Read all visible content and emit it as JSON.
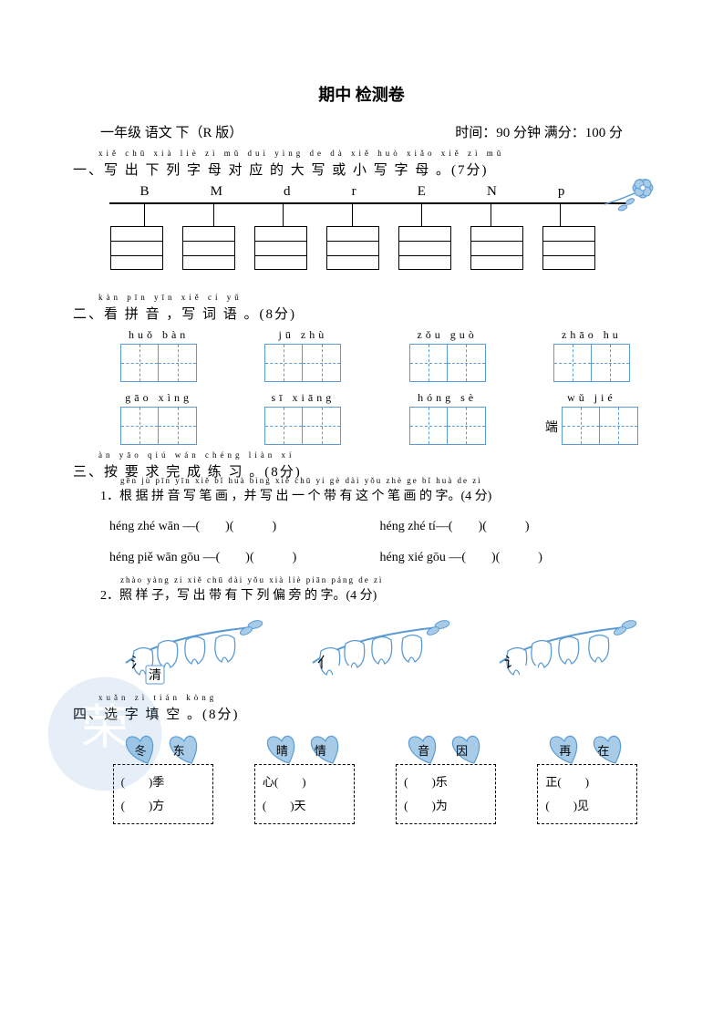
{
  "title": "期中 检测卷",
  "subheader": {
    "left": "一年级 语文 下（R 版）",
    "right": "时间：90 分钟 满分：100 分"
  },
  "q1": {
    "pinyin": "xiě chū xià liè zì mǔ duì yìng de dà xiě huò xiǎo xiě zì mǔ",
    "heading": "一、写 出 下 列 字 母 对 应 的 大 写 或 小 写 字 母 。(7分)",
    "letters": [
      "B",
      "M",
      "d",
      "r",
      "E",
      "N",
      "p"
    ]
  },
  "q2": {
    "pinyin": "kàn pīn yīn   xiě cí yǔ",
    "heading": "二、看 拼 音 ，写 词 语 。(8分)",
    "items": [
      {
        "pinyin": "huǒ  bàn",
        "prefix": ""
      },
      {
        "pinyin": "jū   zhù",
        "prefix": ""
      },
      {
        "pinyin": "zǒu  guò",
        "prefix": ""
      },
      {
        "pinyin": "zhāo  hu",
        "prefix": ""
      },
      {
        "pinyin": "gāo  xìng",
        "prefix": ""
      },
      {
        "pinyin": "sī  xiāng",
        "prefix": ""
      },
      {
        "pinyin": "hóng  sè",
        "prefix": ""
      },
      {
        "pinyin": "wǔ   jié",
        "prefix": "端"
      }
    ]
  },
  "q3": {
    "pinyin": "àn yāo qiú wán chéng liàn xí",
    "heading": "三、按 要 求 完  成  练 习 。(8分)",
    "sub1_pinyin": "gēn jù pīn yīn xiě bǐ huà   bìng xiě chū yí gè dài yǒu zhè ge bǐ huà de zì",
    "sub1": "1．根 据 拼 音 写 笔 画 ，并 写 出 一 个 带 有 这 个 笔 画 的 字。(4 分)",
    "lines": [
      {
        "l": "héng zhé wān —(　　)(　　　)",
        "r": "héng zhé tí—(　　)(　　　)"
      },
      {
        "l": "héng piě wān gōu —(　　)(　　　)",
        "r": "héng xié gōu —(　　)(　　　)"
      }
    ],
    "sub2_pinyin": "zhào yàng zi   xiě chū dài yǒu xià liè piān páng de zì",
    "sub2": "2．照 样 子，写 出 带 有 下 列 偏 旁 的 字。(4 分)",
    "radicals": [
      "氵",
      "亻",
      "讠"
    ],
    "example_char": "清"
  },
  "q4": {
    "pinyin": "xuǎn zì tián kòng",
    "heading": "四、选 字 填 空 。(8分)",
    "groups": [
      {
        "chars": [
          "冬",
          "东"
        ],
        "lines": [
          "(　　)季",
          "(　　)方"
        ]
      },
      {
        "chars": [
          "晴",
          "情"
        ],
        "lines": [
          "心(　　)",
          "(　　)天"
        ]
      },
      {
        "chars": [
          "音",
          "因"
        ],
        "lines": [
          "(　　)乐",
          "(　　)为"
        ]
      },
      {
        "chars": [
          "再",
          "在"
        ],
        "lines": [
          "正(　　)",
          "(　　)见"
        ]
      }
    ]
  },
  "colors": {
    "accent": "#a8cce8",
    "line": "#5b9bd5"
  }
}
